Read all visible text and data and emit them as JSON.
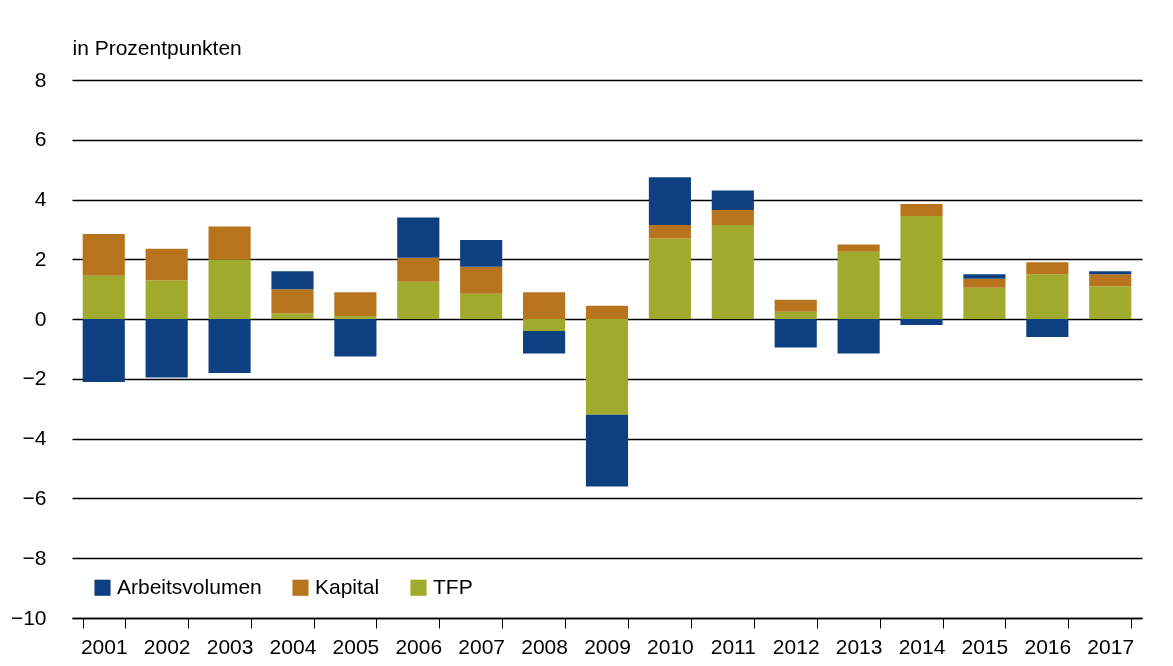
{
  "chart_data": {
    "type": "bar",
    "stacked": true,
    "ylabel": "in Prozentpunkten",
    "categories": [
      "2001",
      "2002",
      "2003",
      "2004",
      "2005",
      "2006",
      "2007",
      "2008",
      "2009",
      "2010",
      "2011",
      "2012",
      "2013",
      "2014",
      "2015",
      "2016",
      "2017"
    ],
    "series": [
      {
        "name": "TFP",
        "color": "#a0ab2e",
        "values": [
          1.45,
          1.3,
          2.0,
          0.2,
          0.1,
          1.25,
          0.85,
          -0.4,
          -3.2,
          2.7,
          3.15,
          0.25,
          2.25,
          3.45,
          1.05,
          1.5,
          1.1
        ]
      },
      {
        "name": "Kapital",
        "color": "#b8741c",
        "values": [
          1.4,
          1.05,
          1.1,
          0.8,
          0.8,
          0.8,
          0.9,
          0.9,
          0.45,
          0.45,
          0.5,
          0.4,
          0.25,
          0.4,
          0.3,
          0.4,
          0.4
        ]
      },
      {
        "name": "Arbeitsvolumen",
        "color": "#0e4081",
        "values": [
          -2.1,
          -1.95,
          -1.8,
          0.6,
          -1.25,
          1.35,
          0.9,
          -0.75,
          -2.4,
          1.6,
          0.65,
          -0.95,
          -1.15,
          -0.2,
          0.15,
          -0.6,
          0.1
        ]
      }
    ],
    "ylim": [
      -10,
      8
    ],
    "yticks": [
      -10,
      -8,
      -6,
      -4,
      -2,
      0,
      2,
      4,
      6,
      8
    ],
    "grid": "y",
    "legend": "bottom left"
  }
}
